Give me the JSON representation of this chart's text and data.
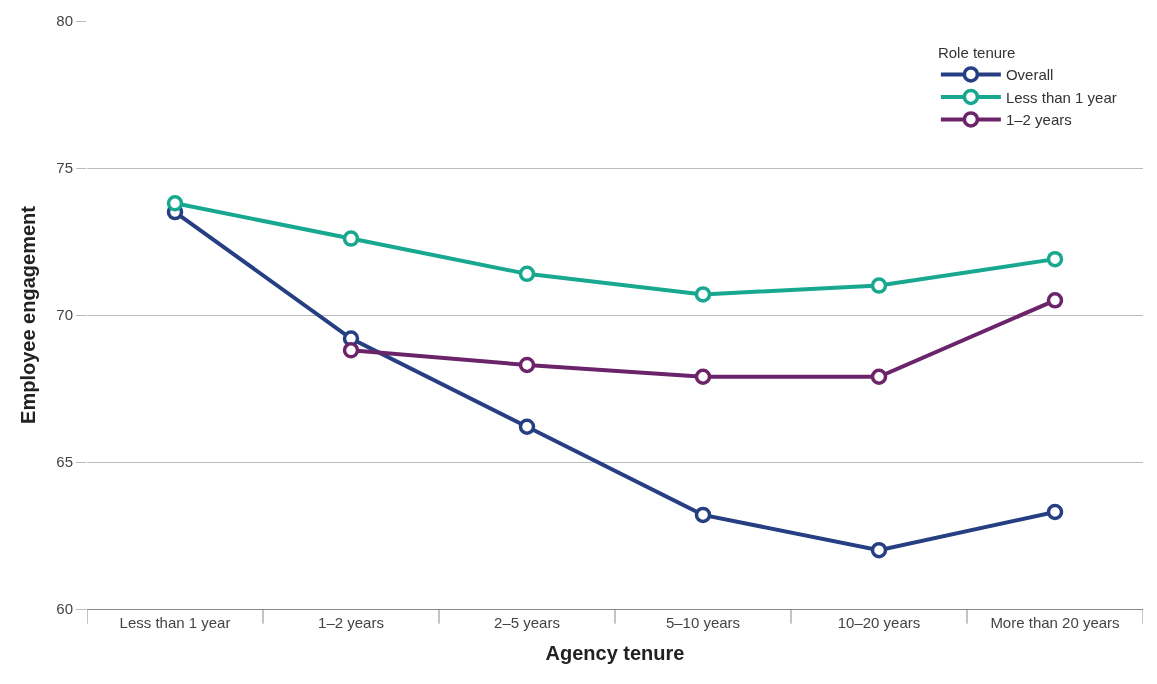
{
  "chart_data": {
    "type": "line",
    "xlabel": "Agency tenure",
    "ylabel": "Employee engagement",
    "legend_title": "Role tenure",
    "categories": [
      "Less than 1 year",
      "1–2 years",
      "2–5 years",
      "5–10 years",
      "10–20 years",
      "More than 20 years"
    ],
    "series": [
      {
        "name": "Overall",
        "color": "#253f82",
        "values": [
          73.5,
          69.2,
          66.2,
          63.2,
          62.0,
          63.3
        ]
      },
      {
        "name": "Less than 1 year",
        "color": "#17a88f",
        "values": [
          73.8,
          72.6,
          71.4,
          70.7,
          71.0,
          71.9
        ]
      },
      {
        "name": "1–2 years",
        "color": "#6b2469",
        "values": [
          null,
          68.8,
          68.3,
          67.9,
          67.9,
          70.5
        ]
      }
    ],
    "ylim": [
      60,
      80
    ],
    "yticks": [
      60,
      65,
      70,
      75,
      80
    ],
    "grid": "y",
    "legend": "top right",
    "marker": "circle",
    "line_style": "solid"
  }
}
